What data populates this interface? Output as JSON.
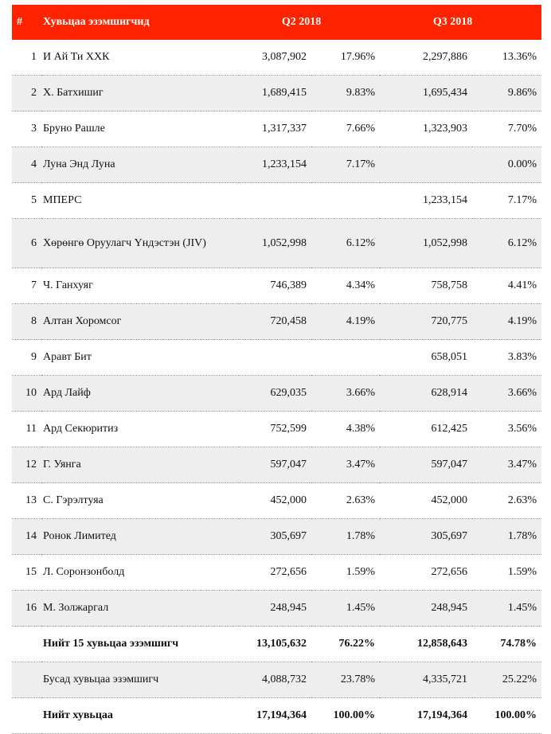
{
  "header": {
    "idx": "#",
    "name": "Хувьцаа эзэмшигчид",
    "q2": "Q2 2018",
    "q3": "Q3 2018"
  },
  "rows": [
    {
      "idx": "1",
      "name": "И Ай Ти ХХК",
      "q2v": "3,087,902",
      "q2p": "17.96%",
      "q3v": "2,297,886",
      "q3p": "13.36%"
    },
    {
      "idx": "2",
      "name": "Х. Батхишиг",
      "q2v": "1,689,415",
      "q2p": "9.83%",
      "q3v": "1,695,434",
      "q3p": "9.86%"
    },
    {
      "idx": "3",
      "name": "Бруно Рашле",
      "q2v": "1,317,337",
      "q2p": "7.66%",
      "q3v": "1,323,903",
      "q3p": "7.70%"
    },
    {
      "idx": "4",
      "name": "Луна Энд Луна",
      "q2v": "1,233,154",
      "q2p": "7.17%",
      "q3v": "",
      "q3p": "0.00%"
    },
    {
      "idx": "5",
      "name": "МПЕРС",
      "q2v": "",
      "q2p": "",
      "q3v": "1,233,154",
      "q3p": "7.17%"
    },
    {
      "idx": "6",
      "name": "Хөрөнгө Оруулагч Үндэстэн (JIV)",
      "q2v": "1,052,998",
      "q2p": "6.12%",
      "q3v": "1,052,998",
      "q3p": "6.12%"
    },
    {
      "idx": "7",
      "name": "Ч. Ганхуяг",
      "q2v": "746,389",
      "q2p": "4.34%",
      "q3v": "758,758",
      "q3p": "4.41%"
    },
    {
      "idx": "8",
      "name": "Алтан Хоромсог",
      "q2v": "720,458",
      "q2p": "4.19%",
      "q3v": "720,775",
      "q3p": "4.19%"
    },
    {
      "idx": "9",
      "name": "Аравт Бит",
      "q2v": "",
      "q2p": "",
      "q3v": "658,051",
      "q3p": "3.83%"
    },
    {
      "idx": "10",
      "name": "Ард Лайф",
      "q2v": "629,035",
      "q2p": "3.66%",
      "q3v": "628,914",
      "q3p": "3.66%"
    },
    {
      "idx": "11",
      "name": "Ард Секюритиз",
      "q2v": "752,599",
      "q2p": "4.38%",
      "q3v": "612,425",
      "q3p": "3.56%"
    },
    {
      "idx": "12",
      "name": "Г. Уянга",
      "q2v": "597,047",
      "q2p": "3.47%",
      "q3v": "597,047",
      "q3p": "3.47%"
    },
    {
      "idx": "13",
      "name": "С. Гэрэлтуяа",
      "q2v": "452,000",
      "q2p": "2.63%",
      "q3v": "452,000",
      "q3p": "2.63%"
    },
    {
      "idx": "14",
      "name": "Ронок Лимитед",
      "q2v": "305,697",
      "q2p": "1.78%",
      "q3v": "305,697",
      "q3p": "1.78%"
    },
    {
      "idx": "15",
      "name": "Л. Соронзонболд",
      "q2v": "272,656",
      "q2p": "1.59%",
      "q3v": "272,656",
      "q3p": "1.59%"
    },
    {
      "idx": "16",
      "name": "М. Золжаргал",
      "q2v": "248,945",
      "q2p": "1.45%",
      "q3v": "248,945",
      "q3p": "1.45%"
    },
    {
      "idx": "",
      "name": "Нийт 15 хувьцаа эзэмшигч",
      "q2v": "13,105,632",
      "q2p": "76.22%",
      "q3v": "12,858,643",
      "q3p": "74.78%"
    },
    {
      "idx": "",
      "name": "Бусад хувьцаа эзэмшигч",
      "q2v": "4,088,732",
      "q2p": "23.78%",
      "q3v": "4,335,721",
      "q3p": "25.22%"
    },
    {
      "idx": "",
      "name": "Нийт хувьцаа",
      "q2v": "17,194,364",
      "q2p": "100.00%",
      "q3v": "17,194,364",
      "q3p": "100.00%"
    }
  ]
}
